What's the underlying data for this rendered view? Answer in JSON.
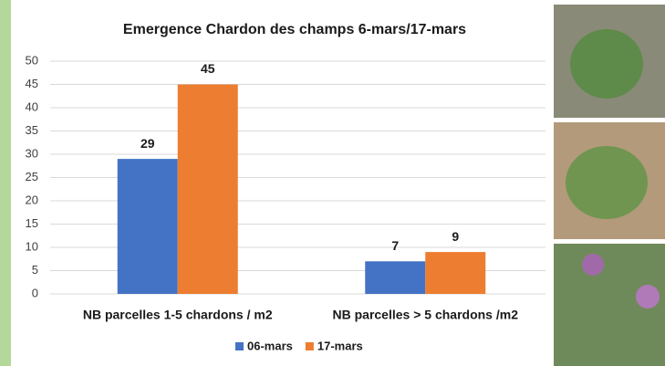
{
  "chart_data": {
    "type": "bar",
    "title": "Emergence Chardon des champs 6-mars/17-mars",
    "categories": [
      "NB parcelles  1-5 chardons / m2",
      "NB parcelles > 5 chardons  /m2"
    ],
    "series": [
      {
        "name": "06-mars",
        "color": "#4472c4",
        "values": [
          29,
          7
        ]
      },
      {
        "name": "17-mars",
        "color": "#ed7d31",
        "values": [
          45,
          9
        ]
      }
    ],
    "ylim": [
      0,
      50
    ],
    "yticks": [
      0,
      5,
      10,
      15,
      20,
      25,
      30,
      35,
      40,
      45,
      50
    ],
    "grid": true,
    "legend": "bottom"
  }
}
